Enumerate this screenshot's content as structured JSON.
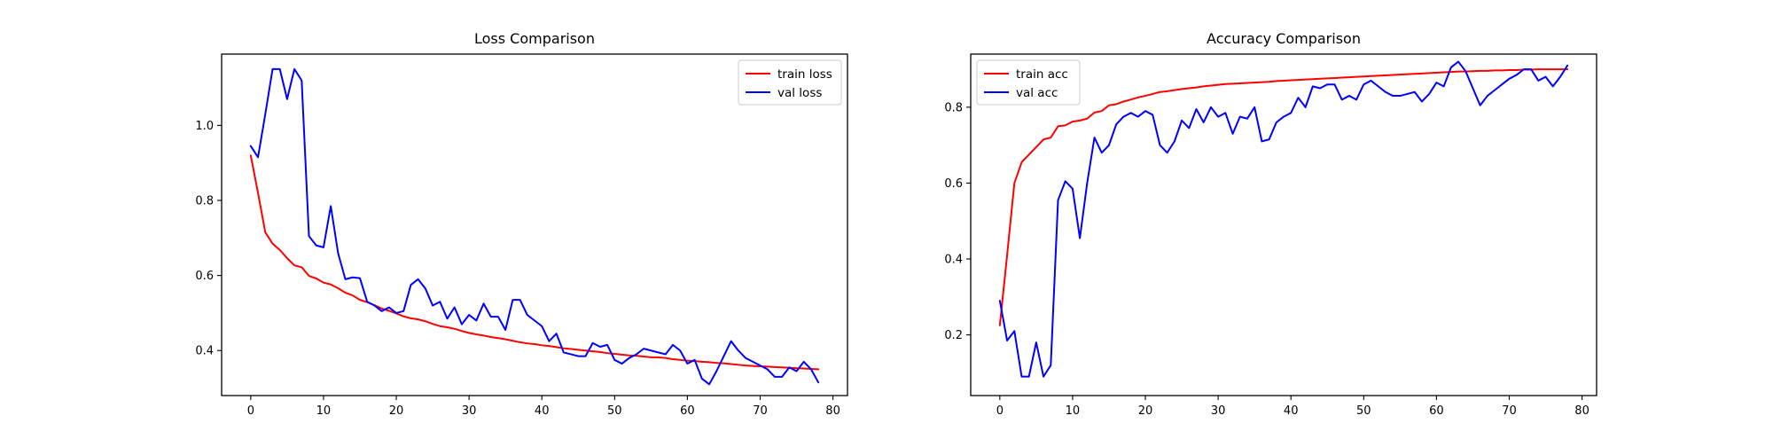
{
  "chart_data": [
    {
      "type": "line",
      "title": "Loss Comparison",
      "xlim": [
        -4,
        82
      ],
      "ylim": [
        0.28,
        1.19
      ],
      "xticks": [
        0,
        10,
        20,
        30,
        40,
        50,
        60,
        70,
        80
      ],
      "yticks": [
        0.4,
        0.6,
        0.8,
        1.0
      ],
      "ytick_labels": [
        "0.4",
        "0.6",
        "0.8",
        "1.0"
      ],
      "legend": "top-right",
      "series": [
        {
          "name": "train loss",
          "color": "#ff0000",
          "values": [
            0.92,
            0.82,
            0.715,
            0.685,
            0.668,
            0.646,
            0.627,
            0.622,
            0.599,
            0.592,
            0.581,
            0.576,
            0.566,
            0.554,
            0.547,
            0.535,
            0.529,
            0.521,
            0.512,
            0.506,
            0.499,
            0.491,
            0.486,
            0.483,
            0.478,
            0.471,
            0.465,
            0.462,
            0.458,
            0.452,
            0.447,
            0.443,
            0.44,
            0.436,
            0.433,
            0.43,
            0.426,
            0.422,
            0.419,
            0.417,
            0.414,
            0.412,
            0.409,
            0.406,
            0.404,
            0.402,
            0.4,
            0.398,
            0.396,
            0.393,
            0.391,
            0.389,
            0.387,
            0.386,
            0.384,
            0.382,
            0.382,
            0.38,
            0.377,
            0.375,
            0.373,
            0.372,
            0.37,
            0.369,
            0.367,
            0.366,
            0.364,
            0.362,
            0.36,
            0.359,
            0.358,
            0.357,
            0.356,
            0.355,
            0.354,
            0.353,
            0.352,
            0.351,
            0.35
          ]
        },
        {
          "name": "val loss",
          "color": "#0000ff",
          "values": [
            0.945,
            0.915,
            1.03,
            1.15,
            1.15,
            1.07,
            1.15,
            1.12,
            0.705,
            0.68,
            0.675,
            0.785,
            0.66,
            0.59,
            0.595,
            0.593,
            0.53,
            0.52,
            0.505,
            0.515,
            0.5,
            0.505,
            0.575,
            0.59,
            0.565,
            0.52,
            0.53,
            0.485,
            0.515,
            0.47,
            0.495,
            0.48,
            0.525,
            0.49,
            0.49,
            0.455,
            0.535,
            0.535,
            0.495,
            0.48,
            0.465,
            0.425,
            0.445,
            0.395,
            0.39,
            0.385,
            0.385,
            0.42,
            0.41,
            0.415,
            0.375,
            0.365,
            0.38,
            0.39,
            0.405,
            0.4,
            0.395,
            0.39,
            0.415,
            0.4,
            0.365,
            0.375,
            0.325,
            0.31,
            0.345,
            0.385,
            0.425,
            0.4,
            0.38,
            0.37,
            0.36,
            0.35,
            0.33,
            0.33,
            0.355,
            0.345,
            0.37,
            0.35,
            0.315
          ]
        }
      ]
    },
    {
      "type": "line",
      "title": "Accuracy Comparison",
      "xlim": [
        -4,
        82
      ],
      "ylim": [
        0.04,
        0.94
      ],
      "xticks": [
        0,
        10,
        20,
        30,
        40,
        50,
        60,
        70,
        80
      ],
      "yticks": [
        0.2,
        0.4,
        0.6,
        0.8
      ],
      "ytick_labels": [
        "0.2",
        "0.4",
        "0.6",
        "0.8"
      ],
      "legend": "top-left",
      "series": [
        {
          "name": "train acc",
          "color": "#ff0000",
          "values": [
            0.225,
            0.41,
            0.6,
            0.655,
            0.675,
            0.695,
            0.715,
            0.72,
            0.75,
            0.752,
            0.762,
            0.765,
            0.77,
            0.786,
            0.79,
            0.805,
            0.808,
            0.815,
            0.82,
            0.826,
            0.83,
            0.835,
            0.84,
            0.842,
            0.845,
            0.848,
            0.85,
            0.852,
            0.855,
            0.857,
            0.859,
            0.861,
            0.862,
            0.863,
            0.864,
            0.865,
            0.866,
            0.867,
            0.869,
            0.87,
            0.871,
            0.872,
            0.873,
            0.874,
            0.875,
            0.876,
            0.877,
            0.878,
            0.879,
            0.88,
            0.881,
            0.882,
            0.883,
            0.884,
            0.885,
            0.886,
            0.887,
            0.888,
            0.889,
            0.89,
            0.891,
            0.892,
            0.893,
            0.894,
            0.894,
            0.895,
            0.896,
            0.896,
            0.897,
            0.897,
            0.898,
            0.898,
            0.899,
            0.899,
            0.9,
            0.9,
            0.9,
            0.9,
            0.9
          ]
        },
        {
          "name": "val acc",
          "color": "#0000ff",
          "values": [
            0.29,
            0.185,
            0.21,
            0.09,
            0.09,
            0.18,
            0.09,
            0.12,
            0.555,
            0.605,
            0.585,
            0.455,
            0.6,
            0.72,
            0.68,
            0.7,
            0.755,
            0.775,
            0.785,
            0.775,
            0.79,
            0.78,
            0.7,
            0.68,
            0.71,
            0.765,
            0.745,
            0.795,
            0.76,
            0.8,
            0.775,
            0.785,
            0.73,
            0.775,
            0.77,
            0.8,
            0.71,
            0.715,
            0.76,
            0.775,
            0.785,
            0.825,
            0.8,
            0.855,
            0.85,
            0.86,
            0.86,
            0.82,
            0.83,
            0.82,
            0.86,
            0.87,
            0.855,
            0.84,
            0.83,
            0.83,
            0.835,
            0.84,
            0.815,
            0.835,
            0.865,
            0.855,
            0.905,
            0.92,
            0.895,
            0.85,
            0.805,
            0.83,
            0.845,
            0.86,
            0.875,
            0.885,
            0.9,
            0.9,
            0.87,
            0.88,
            0.855,
            0.88,
            0.91
          ]
        }
      ]
    }
  ]
}
